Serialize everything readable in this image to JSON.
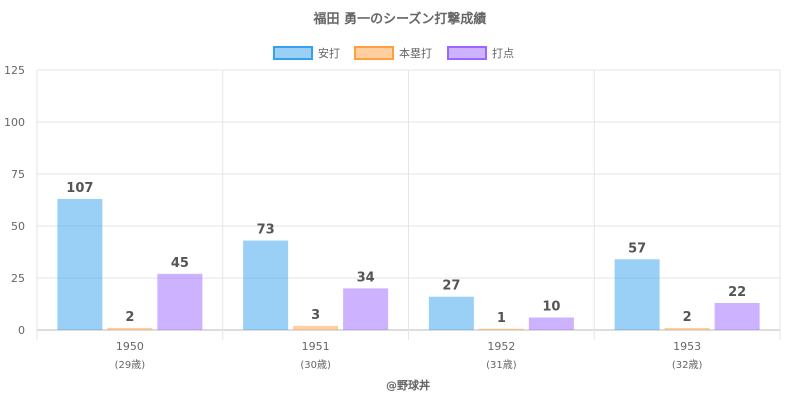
{
  "chart_data": {
    "type": "bar",
    "title": "福田 勇一のシーズン打撃成績",
    "categories": [
      "1950",
      "1951",
      "1952",
      "1953"
    ],
    "sub_categories": [
      "(29歳)",
      "(30歳)",
      "(31歳)",
      "(32歳)"
    ],
    "series": [
      {
        "name": "安打",
        "values": [
          107,
          73,
          27,
          57
        ],
        "displayed_values": [
          63,
          43,
          16,
          34
        ],
        "color": "#36a2eb"
      },
      {
        "name": "本塁打",
        "values": [
          2,
          3,
          1,
          2
        ],
        "displayed_values": [
          1,
          2,
          0.6,
          1
        ],
        "color": "#ff9f40"
      },
      {
        "name": "打点",
        "values": [
          45,
          34,
          10,
          22
        ],
        "displayed_values": [
          27,
          20,
          6,
          13
        ],
        "color": "#9966ff"
      }
    ],
    "ylim": [
      0,
      125
    ],
    "yticks": [
      0,
      25,
      50,
      75,
      100,
      125
    ],
    "grid": true,
    "legend": "top-center",
    "footer": "@野球丼"
  }
}
